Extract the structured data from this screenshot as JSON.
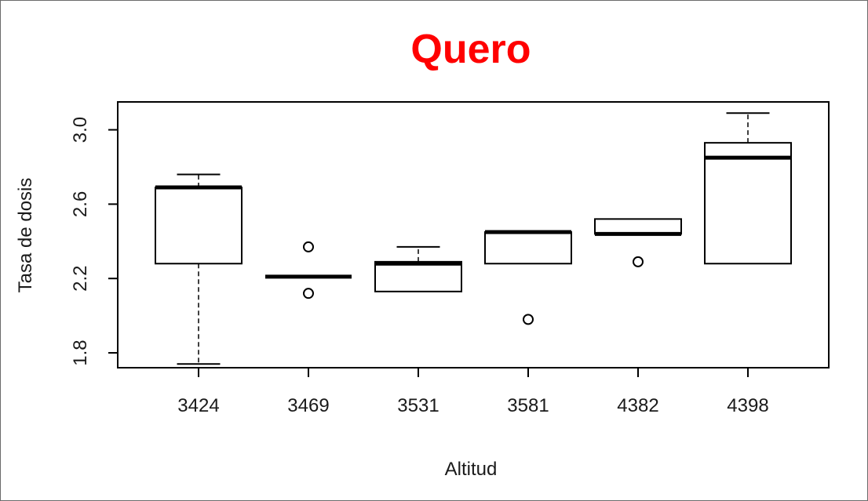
{
  "chart_data": {
    "type": "boxplot",
    "title": "Quero",
    "title_color": "#ff0000",
    "xlabel": "Altitud",
    "ylabel": "Tasa de dosis",
    "ylim": [
      1.72,
      3.15
    ],
    "yticks": [
      "1.8",
      "2.2",
      "2.6",
      "3.0"
    ],
    "categories": [
      "3424",
      "3469",
      "3531",
      "3581",
      "4382",
      "4398"
    ],
    "boxes": [
      {
        "whisker_low": 1.74,
        "q1": 2.28,
        "median": 2.69,
        "q3": 2.69,
        "whisker_high": 2.76,
        "outliers": []
      },
      {
        "whisker_low": 2.21,
        "q1": 2.21,
        "median": 2.21,
        "q3": 2.21,
        "whisker_high": 2.21,
        "outliers": [
          2.37,
          2.12
        ]
      },
      {
        "whisker_low": 2.13,
        "q1": 2.13,
        "median": 2.28,
        "q3": 2.29,
        "whisker_high": 2.37,
        "outliers": []
      },
      {
        "whisker_low": 2.28,
        "q1": 2.28,
        "median": 2.45,
        "q3": 2.45,
        "whisker_high": 2.45,
        "outliers": [
          1.98
        ]
      },
      {
        "whisker_low": 2.44,
        "q1": 2.44,
        "median": 2.44,
        "q3": 2.52,
        "whisker_high": 2.52,
        "outliers": [
          2.29
        ]
      },
      {
        "whisker_low": 2.28,
        "q1": 2.28,
        "median": 2.85,
        "q3": 2.93,
        "whisker_high": 3.09,
        "outliers": []
      }
    ],
    "grid": false,
    "legend": "none"
  }
}
